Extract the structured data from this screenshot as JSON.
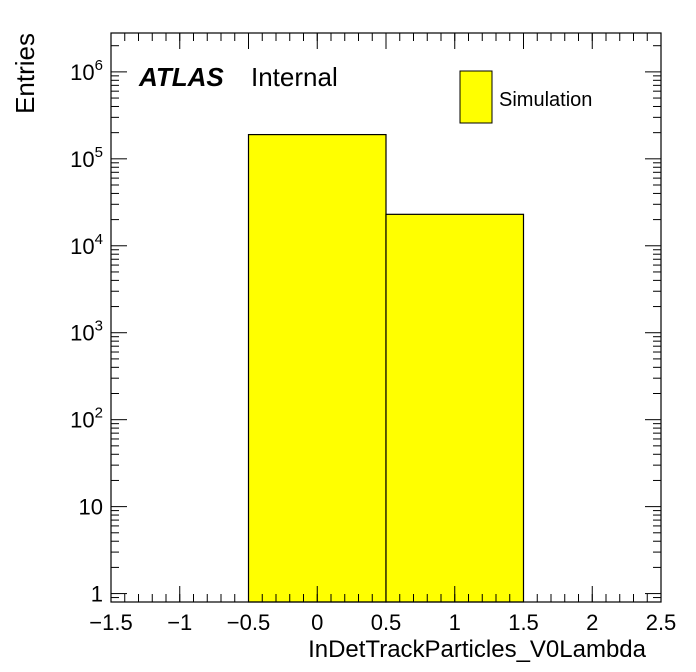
{
  "chart_data": {
    "type": "bar",
    "histogram": true,
    "bin_edges": [
      -0.5,
      0.5,
      1.5
    ],
    "values": [
      190000,
      23000
    ],
    "xlabel": "InDetTrackParticles_V0Lambda",
    "ylabel": "Entries",
    "xlim": [
      -1.5,
      2.5
    ],
    "ylim": [
      0.8,
      2800000
    ],
    "yscale": "log",
    "x_ticks": [
      -1.5,
      -1,
      -0.5,
      0,
      0.5,
      1,
      1.5,
      2,
      2.5
    ],
    "x_tick_labels": [
      "−1.5",
      "−1",
      "−0.5",
      "0",
      "0.5",
      "1",
      "1.5",
      "2",
      "2.5"
    ],
    "y_ticks": [
      1,
      10,
      100,
      1000,
      10000,
      100000,
      1000000
    ],
    "y_tick_labels": [
      {
        "base": "1",
        "exp": ""
      },
      {
        "base": "10",
        "exp": ""
      },
      {
        "base": "10",
        "exp": "2"
      },
      {
        "base": "10",
        "exp": "3"
      },
      {
        "base": "10",
        "exp": "4"
      },
      {
        "base": "10",
        "exp": "5"
      },
      {
        "base": "10",
        "exp": "6"
      }
    ],
    "fill_color": "#ffff00",
    "grid": false,
    "legend": {
      "placement": "top-right",
      "entries": [
        {
          "name": "Simulation",
          "color": "#ffff00"
        }
      ]
    },
    "annotation": {
      "experiment": "ATLAS",
      "status": "Internal"
    }
  }
}
